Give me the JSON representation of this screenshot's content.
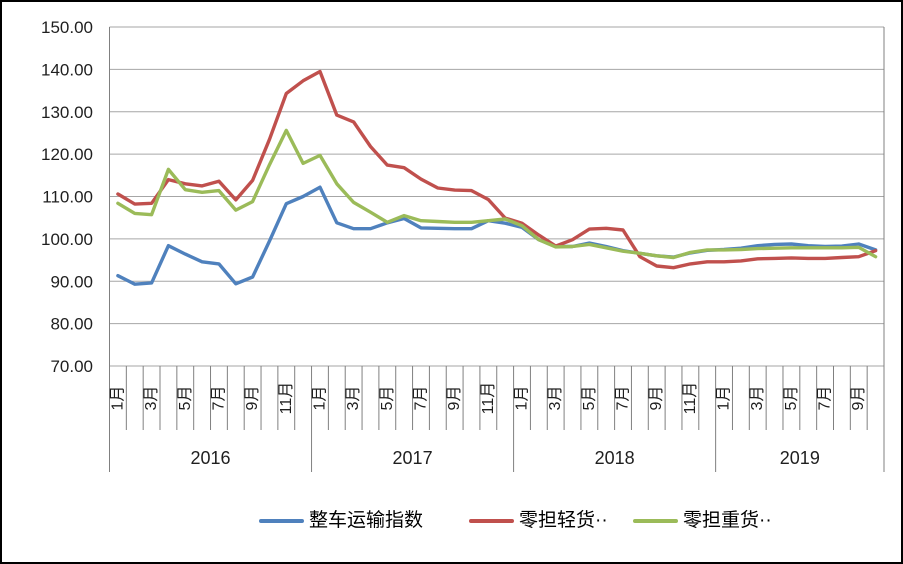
{
  "chart_data": {
    "type": "line",
    "title": "",
    "y_axis": {
      "min": 70,
      "max": 150,
      "step": 10,
      "tick_labels": [
        "150.00",
        "140.00",
        "130.00",
        "120.00",
        "110.00",
        "100.00",
        "90.00",
        "80.00",
        "70.00"
      ]
    },
    "x_axis": {
      "years": [
        {
          "label": "2016",
          "months": 12,
          "month_labels": [
            "1月",
            "3月",
            "5月",
            "7月",
            "9月",
            "11月"
          ]
        },
        {
          "label": "2017",
          "months": 12,
          "month_labels": [
            "1月",
            "3月",
            "5月",
            "7月",
            "9月",
            "11月"
          ]
        },
        {
          "label": "2018",
          "months": 12,
          "month_labels": [
            "1月",
            "3月",
            "5月",
            "7月",
            "9月",
            "11月"
          ]
        },
        {
          "label": "2019",
          "months": 10,
          "month_labels": [
            "1月",
            "3月",
            "5月",
            "7月",
            "9月"
          ]
        }
      ]
    },
    "grid": "horizontal",
    "legend_position": "bottom",
    "colors": {
      "gridline": "#a6a6a6",
      "plot_border": "#808080",
      "axis_text": "#1f1f1f",
      "frame_border": "#000000"
    },
    "series": [
      {
        "id": "full-truckload-index",
        "name": "整车运输指数",
        "color": "#4F81BD",
        "values": [
          91.3,
          89.3,
          89.6,
          98.4,
          96.4,
          94.6,
          94.1,
          89.4,
          91.0,
          99.5,
          108.3,
          110.0,
          112.2,
          103.8,
          102.4,
          102.4,
          103.8,
          104.8,
          102.6,
          102.5,
          102.4,
          102.4,
          104.3,
          103.7,
          102.7,
          99.8,
          98.2,
          98.2,
          99.0,
          98.2,
          97.2,
          96.6,
          96.0,
          95.7,
          96.7,
          97.3,
          97.5,
          97.8,
          98.4,
          98.7,
          98.8,
          98.4,
          98.2,
          98.3,
          98.8,
          97.4
        ]
      },
      {
        "id": "ltl-light-cargo",
        "name": "零担轻货··",
        "color": "#C0504D",
        "values": [
          110.6,
          108.2,
          108.4,
          114.0,
          113.0,
          112.5,
          113.6,
          109.2,
          113.8,
          123.5,
          134.3,
          137.3,
          139.5,
          129.2,
          127.6,
          121.8,
          117.4,
          116.8,
          114.1,
          112.0,
          111.5,
          111.4,
          109.3,
          104.9,
          103.7,
          100.9,
          98.3,
          99.8,
          102.3,
          102.5,
          102.1,
          95.8,
          93.6,
          93.2,
          94.1,
          94.6,
          94.6,
          94.8,
          95.3,
          95.4,
          95.5,
          95.4,
          95.4,
          95.6,
          95.8,
          97.2
        ]
      },
      {
        "id": "ltl-heavy-cargo",
        "name": "零担重货··",
        "color": "#9BBB59",
        "values": [
          108.4,
          106.0,
          105.7,
          116.4,
          111.6,
          111.0,
          111.4,
          106.8,
          108.8,
          117.5,
          125.6,
          117.8,
          119.7,
          113.0,
          108.6,
          106.3,
          103.9,
          105.5,
          104.3,
          104.1,
          103.9,
          103.9,
          104.3,
          104.7,
          103.1,
          99.8,
          98.1,
          98.2,
          98.7,
          97.9,
          97.1,
          96.6,
          96.0,
          95.6,
          96.8,
          97.4,
          97.4,
          97.5,
          97.7,
          97.8,
          97.9,
          97.9,
          97.9,
          97.9,
          98.0,
          95.8
        ]
      }
    ]
  }
}
